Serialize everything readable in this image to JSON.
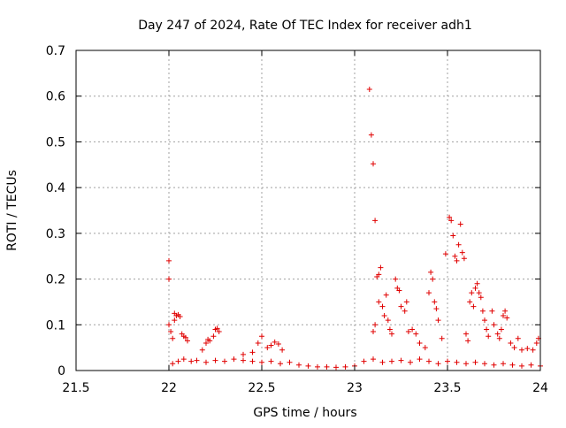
{
  "chart_data": {
    "type": "scatter",
    "title": "Day 247 of 2024, Rate Of TEC Index for receiver adh1",
    "xlabel": "GPS time / hours",
    "ylabel": "ROTI / TECUs",
    "xlim": [
      21.5,
      24
    ],
    "ylim": [
      0,
      0.7
    ],
    "xticks": [
      "21.5",
      "22",
      "22.5",
      "23",
      "23.5",
      "24"
    ],
    "yticks": [
      "0",
      "0.1",
      "0.2",
      "0.3",
      "0.4",
      "0.5",
      "0.6",
      "0.7"
    ],
    "grid": true,
    "marker": "+",
    "color": "#e00000",
    "series": [
      {
        "points": [
          [
            22.0,
            0.24
          ],
          [
            22.0,
            0.2
          ],
          [
            22.0,
            0.1
          ],
          [
            22.01,
            0.085
          ],
          [
            22.02,
            0.07
          ],
          [
            22.03,
            0.11
          ],
          [
            22.03,
            0.125
          ],
          [
            22.04,
            0.12
          ],
          [
            22.05,
            0.122
          ],
          [
            22.06,
            0.118
          ],
          [
            22.07,
            0.08
          ],
          [
            22.08,
            0.075
          ],
          [
            22.09,
            0.072
          ],
          [
            22.1,
            0.065
          ],
          [
            22.18,
            0.045
          ],
          [
            22.2,
            0.06
          ],
          [
            22.21,
            0.068
          ],
          [
            22.22,
            0.065
          ],
          [
            22.24,
            0.075
          ],
          [
            22.25,
            0.09
          ],
          [
            22.26,
            0.092
          ],
          [
            22.27,
            0.085
          ],
          [
            22.4,
            0.035
          ],
          [
            22.45,
            0.04
          ],
          [
            22.48,
            0.06
          ],
          [
            22.5,
            0.075
          ],
          [
            22.53,
            0.05
          ],
          [
            22.55,
            0.055
          ],
          [
            22.57,
            0.062
          ],
          [
            22.59,
            0.058
          ],
          [
            22.61,
            0.045
          ],
          [
            23.08,
            0.615
          ],
          [
            23.09,
            0.515
          ],
          [
            23.1,
            0.452
          ],
          [
            23.11,
            0.328
          ],
          [
            23.1,
            0.085
          ],
          [
            23.11,
            0.1
          ],
          [
            23.12,
            0.205
          ],
          [
            23.13,
            0.21
          ],
          [
            23.14,
            0.225
          ],
          [
            23.13,
            0.15
          ],
          [
            23.15,
            0.14
          ],
          [
            23.16,
            0.12
          ],
          [
            23.17,
            0.165
          ],
          [
            23.18,
            0.11
          ],
          [
            23.19,
            0.09
          ],
          [
            23.2,
            0.08
          ],
          [
            23.22,
            0.2
          ],
          [
            23.23,
            0.18
          ],
          [
            23.24,
            0.175
          ],
          [
            23.25,
            0.14
          ],
          [
            23.27,
            0.13
          ],
          [
            23.28,
            0.15
          ],
          [
            23.29,
            0.085
          ],
          [
            23.31,
            0.09
          ],
          [
            23.33,
            0.08
          ],
          [
            23.35,
            0.06
          ],
          [
            23.38,
            0.05
          ],
          [
            23.4,
            0.17
          ],
          [
            23.41,
            0.215
          ],
          [
            23.42,
            0.2
          ],
          [
            23.43,
            0.15
          ],
          [
            23.44,
            0.135
          ],
          [
            23.45,
            0.11
          ],
          [
            23.47,
            0.07
          ],
          [
            23.49,
            0.255
          ],
          [
            23.51,
            0.335
          ],
          [
            23.52,
            0.328
          ],
          [
            23.53,
            0.295
          ],
          [
            23.54,
            0.25
          ],
          [
            23.55,
            0.24
          ],
          [
            23.56,
            0.275
          ],
          [
            23.57,
            0.32
          ],
          [
            23.58,
            0.258
          ],
          [
            23.59,
            0.245
          ],
          [
            23.6,
            0.08
          ],
          [
            23.61,
            0.065
          ],
          [
            23.62,
            0.15
          ],
          [
            23.63,
            0.17
          ],
          [
            23.64,
            0.14
          ],
          [
            23.65,
            0.18
          ],
          [
            23.66,
            0.19
          ],
          [
            23.67,
            0.17
          ],
          [
            23.68,
            0.16
          ],
          [
            23.69,
            0.13
          ],
          [
            23.7,
            0.11
          ],
          [
            23.71,
            0.09
          ],
          [
            23.72,
            0.075
          ],
          [
            23.74,
            0.13
          ],
          [
            23.75,
            0.1
          ],
          [
            23.77,
            0.08
          ],
          [
            23.78,
            0.07
          ],
          [
            23.79,
            0.09
          ],
          [
            23.8,
            0.12
          ],
          [
            23.81,
            0.13
          ],
          [
            23.82,
            0.115
          ],
          [
            23.84,
            0.06
          ],
          [
            23.86,
            0.05
          ],
          [
            23.88,
            0.07
          ],
          [
            23.9,
            0.045
          ],
          [
            23.93,
            0.048
          ],
          [
            23.96,
            0.045
          ],
          [
            23.98,
            0.06
          ],
          [
            23.99,
            0.07
          ],
          [
            22.02,
            0.015
          ],
          [
            22.05,
            0.02
          ],
          [
            22.08,
            0.025
          ],
          [
            22.12,
            0.02
          ],
          [
            22.15,
            0.022
          ],
          [
            22.2,
            0.018
          ],
          [
            22.25,
            0.022
          ],
          [
            22.3,
            0.02
          ],
          [
            22.35,
            0.025
          ],
          [
            22.4,
            0.022
          ],
          [
            22.45,
            0.02
          ],
          [
            22.5,
            0.018
          ],
          [
            22.55,
            0.02
          ],
          [
            22.6,
            0.015
          ],
          [
            22.65,
            0.018
          ],
          [
            22.7,
            0.012
          ],
          [
            22.75,
            0.01
          ],
          [
            22.8,
            0.008
          ],
          [
            22.85,
            0.008
          ],
          [
            22.9,
            0.007
          ],
          [
            22.95,
            0.008
          ],
          [
            23.0,
            0.01
          ],
          [
            23.05,
            0.02
          ],
          [
            23.1,
            0.025
          ],
          [
            23.15,
            0.018
          ],
          [
            23.2,
            0.02
          ],
          [
            23.25,
            0.022
          ],
          [
            23.3,
            0.018
          ],
          [
            23.35,
            0.025
          ],
          [
            23.4,
            0.02
          ],
          [
            23.45,
            0.015
          ],
          [
            23.5,
            0.02
          ],
          [
            23.55,
            0.018
          ],
          [
            23.6,
            0.015
          ],
          [
            23.65,
            0.018
          ],
          [
            23.7,
            0.015
          ],
          [
            23.75,
            0.012
          ],
          [
            23.8,
            0.015
          ],
          [
            23.85,
            0.012
          ],
          [
            23.9,
            0.01
          ],
          [
            23.95,
            0.012
          ],
          [
            24.0,
            0.01
          ]
        ]
      }
    ]
  }
}
